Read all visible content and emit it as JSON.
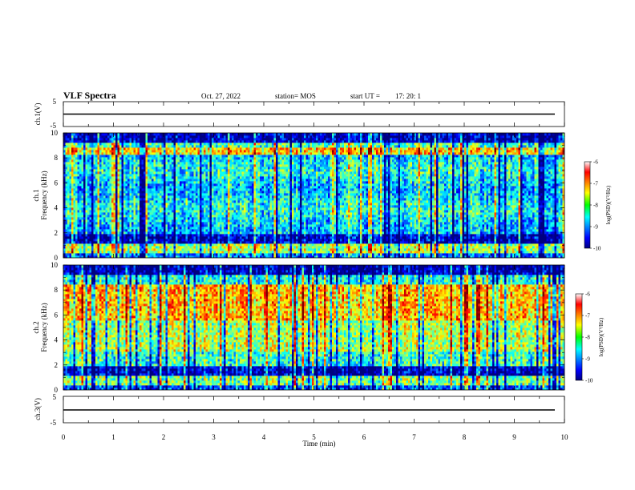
{
  "header": {
    "title": "VLF Spectra",
    "date": "Oct. 27, 2022",
    "station": "station= MOS",
    "start_label": "start  UT  =",
    "start_value": "17: 20: 1"
  },
  "chart_data": [
    {
      "type": "line",
      "name": "ch1-waveform",
      "ylabel": "ch.1(V)",
      "ylim": [
        -5,
        5
      ],
      "yticks": [
        "5",
        "-5"
      ],
      "xlim": [
        0,
        10
      ],
      "baseline": 0
    },
    {
      "type": "heatmap",
      "name": "ch1-spectrogram",
      "ylabel": "ch.1\nFrequency (kHz)",
      "ylabel_line1": "ch.1",
      "ylabel_line2": "Frequency (kHz)",
      "ylim": [
        0,
        10
      ],
      "yticks": [
        "0",
        "2",
        "4",
        "6",
        "8",
        "10"
      ],
      "xlim": [
        0,
        10
      ],
      "colorbar": {
        "label": "log(PSD)(V²/Hz)",
        "range": [
          -10,
          -6
        ],
        "ticks": [
          "-6",
          "-7",
          "-8",
          "-9",
          "-10"
        ],
        "colormap": "jet"
      }
    },
    {
      "type": "heatmap",
      "name": "ch2-spectrogram",
      "ylabel": "ch.2\nFrequency (kHz)",
      "ylabel_line1": "ch.2",
      "ylabel_line2": "Frequency (kHz)",
      "ylim": [
        0,
        10
      ],
      "yticks": [
        "0",
        "2",
        "4",
        "6",
        "8",
        "10"
      ],
      "xlim": [
        0,
        10
      ],
      "colorbar": {
        "label": "log(PSD)(V²/Hz)",
        "range": [
          -10,
          -6
        ],
        "ticks": [
          "-6",
          "-7",
          "-8",
          "-9",
          "-10"
        ],
        "colormap": "jet"
      }
    },
    {
      "type": "line",
      "name": "ch3-waveform",
      "ylabel": "ch.3(V)",
      "ylim": [
        -5,
        5
      ],
      "yticks": [
        "5",
        "-5"
      ],
      "xlim": [
        0,
        10
      ],
      "xlabel": "Time  (min)",
      "xticks": [
        "0",
        "1",
        "2",
        "3",
        "4",
        "5",
        "6",
        "7",
        "8",
        "9",
        "10"
      ],
      "baseline": 0
    }
  ],
  "colors": {
    "axis": "#000000",
    "background": "#ffffff",
    "jet": [
      "#00007f",
      "#0000ff",
      "#00ffff",
      "#00ff00",
      "#ffff00",
      "#ff0000",
      "#7f0000"
    ]
  }
}
